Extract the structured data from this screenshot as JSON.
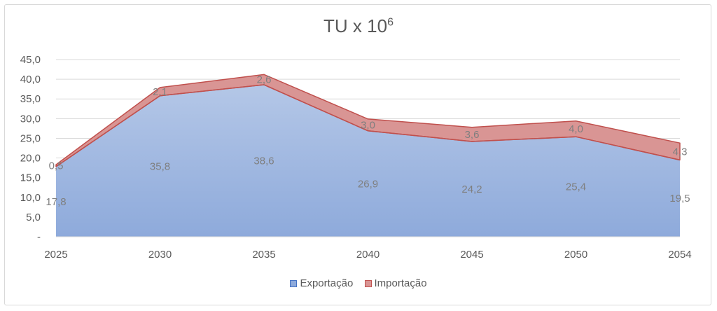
{
  "chart_data": {
    "type": "area",
    "stacked": true,
    "title": "TU x 10",
    "title_superscript": "6",
    "categories": [
      "2025",
      "2030",
      "2035",
      "2040",
      "2045",
      "2050",
      "2054"
    ],
    "series": [
      {
        "name": "Exportação",
        "values": [
          17.8,
          35.8,
          38.6,
          26.9,
          24.2,
          25.4,
          19.5
        ],
        "labels": [
          "17,8",
          "35,8",
          "38,6",
          "26,9",
          "24,2",
          "25,4",
          "19,5"
        ],
        "color": "#8eaadb",
        "color_top": "#b4c7e7",
        "stroke": "#4472c4"
      },
      {
        "name": "Importação",
        "values": [
          0.5,
          2.1,
          2.6,
          3.0,
          3.6,
          4.0,
          4.3
        ],
        "labels": [
          "0,5",
          "2,1",
          "2,6",
          "3,0",
          "3,6",
          "4,0",
          "4,3"
        ],
        "color": "#d99594",
        "stroke": "#c0504d"
      }
    ],
    "ylim": [
      0,
      45
    ],
    "yticks": [
      "-",
      "5,0",
      "10,0",
      "15,0",
      "20,0",
      "25,0",
      "30,0",
      "35,0",
      "40,0",
      "45,0"
    ],
    "grid": true,
    "legend_position": "bottom"
  }
}
